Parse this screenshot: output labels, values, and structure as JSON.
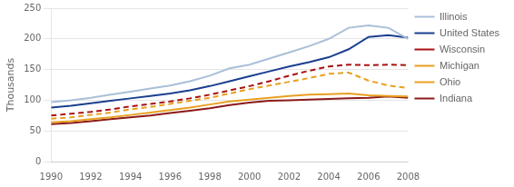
{
  "chart_data": {
    "type": "line",
    "x": [
      1990,
      1991,
      1992,
      1993,
      1994,
      1995,
      1996,
      1997,
      1998,
      1999,
      2000,
      2001,
      2002,
      2003,
      2004,
      2005,
      2006,
      2007,
      2008
    ],
    "series": [
      {
        "name": "Illinois",
        "color": "#aabfd8",
        "line_style": "solid",
        "values": [
          97,
          100,
          104,
          109,
          114,
          119,
          124,
          131,
          140,
          152,
          158,
          168,
          178,
          188,
          200,
          218,
          222,
          218,
          200
        ]
      },
      {
        "name": "United States",
        "color": "#1a3f8f",
        "line_style": "solid",
        "values": [
          88,
          91,
          95,
          99,
          103,
          107,
          111,
          116,
          123,
          131,
          139,
          147,
          155,
          162,
          170,
          183,
          203,
          206,
          202
        ]
      },
      {
        "name": "Wisconsin",
        "color": "#aa1111",
        "line_style": "dashed",
        "values": [
          75,
          78,
          81,
          85,
          90,
          94,
          98,
          103,
          109,
          116,
          123,
          131,
          140,
          148,
          155,
          158,
          157,
          158,
          157
        ]
      },
      {
        "name": "Michigan",
        "color": "#e8a020",
        "line_style": "dashed",
        "values": [
          70,
          72,
          76,
          80,
          85,
          89,
          94,
          99,
          104,
          111,
          118,
          124,
          130,
          136,
          143,
          145,
          132,
          124,
          120
        ]
      },
      {
        "name": "Ohio",
        "color": "#e8a020",
        "line_style": "solid",
        "values": [
          64,
          66,
          69,
          72,
          76,
          80,
          84,
          88,
          93,
          98,
          101,
          104,
          107,
          109,
          110,
          111,
          108,
          107,
          106
        ]
      },
      {
        "name": "Indiana",
        "color": "#8b1a1a",
        "line_style": "solid",
        "values": [
          61,
          63,
          66,
          69,
          72,
          75,
          79,
          83,
          87,
          92,
          96,
          99,
          100,
          101,
          102,
          103,
          104,
          106,
          104
        ]
      }
    ],
    "ylabel": "Thousands",
    "xlim": [
      1990,
      2008
    ],
    "ylim": [
      0,
      250
    ],
    "xticks": [
      1990,
      1992,
      1994,
      1996,
      1998,
      2000,
      2002,
      2004,
      2006,
      2008
    ],
    "yticks": [
      0,
      50,
      100,
      150,
      200,
      250
    ],
    "grid": "y",
    "legend": "right"
  }
}
